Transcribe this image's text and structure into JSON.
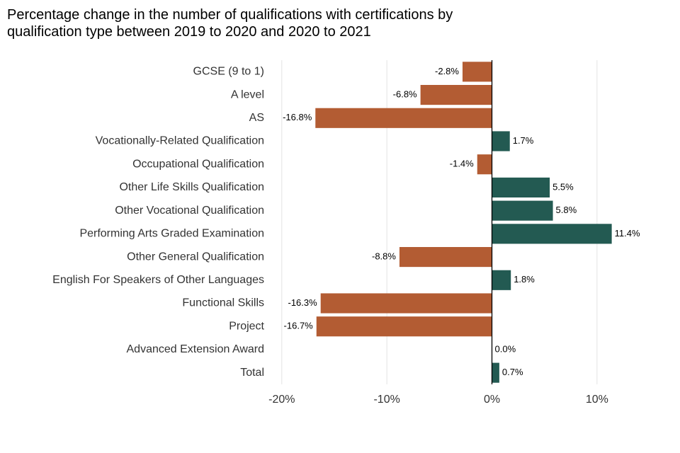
{
  "chart_data": {
    "type": "barh",
    "title": "Percentage change in the number of qualifications with certifications by qualification type between 2019 to 2020 and 2020 to 2021",
    "categories": [
      "GCSE (9 to 1)",
      "A level",
      "AS",
      "Vocationally-Related Qualification",
      "Occupational Qualification",
      "Other Life Skills Qualification",
      "Other Vocational Qualification",
      "Performing Arts Graded Examination",
      "Other General Qualification",
      "English For Speakers of Other Languages",
      "Functional Skills",
      "Project",
      "Advanced Extension Award",
      "Total"
    ],
    "values": [
      -2.8,
      -6.8,
      -16.8,
      1.7,
      -1.4,
      5.5,
      5.8,
      11.4,
      -8.8,
      1.8,
      -16.3,
      -16.7,
      0.0,
      0.7
    ],
    "value_labels": [
      "-2.8%",
      "-6.8%",
      "-16.8%",
      "1.7%",
      "-1.4%",
      "5.5%",
      "5.8%",
      "11.4%",
      "-8.8%",
      "1.8%",
      "-16.3%",
      "-16.7%",
      "0.0%",
      "0.7%"
    ],
    "negative_color": "#b35c33",
    "positive_color": "#235a52",
    "xlim": [
      -21.2,
      15.2
    ],
    "xticks": [
      {
        "value": -20,
        "label": "-20%"
      },
      {
        "value": -10,
        "label": "-10%"
      },
      {
        "value": 0,
        "label": "0%"
      },
      {
        "value": 10,
        "label": "10%"
      }
    ],
    "grid": true
  }
}
